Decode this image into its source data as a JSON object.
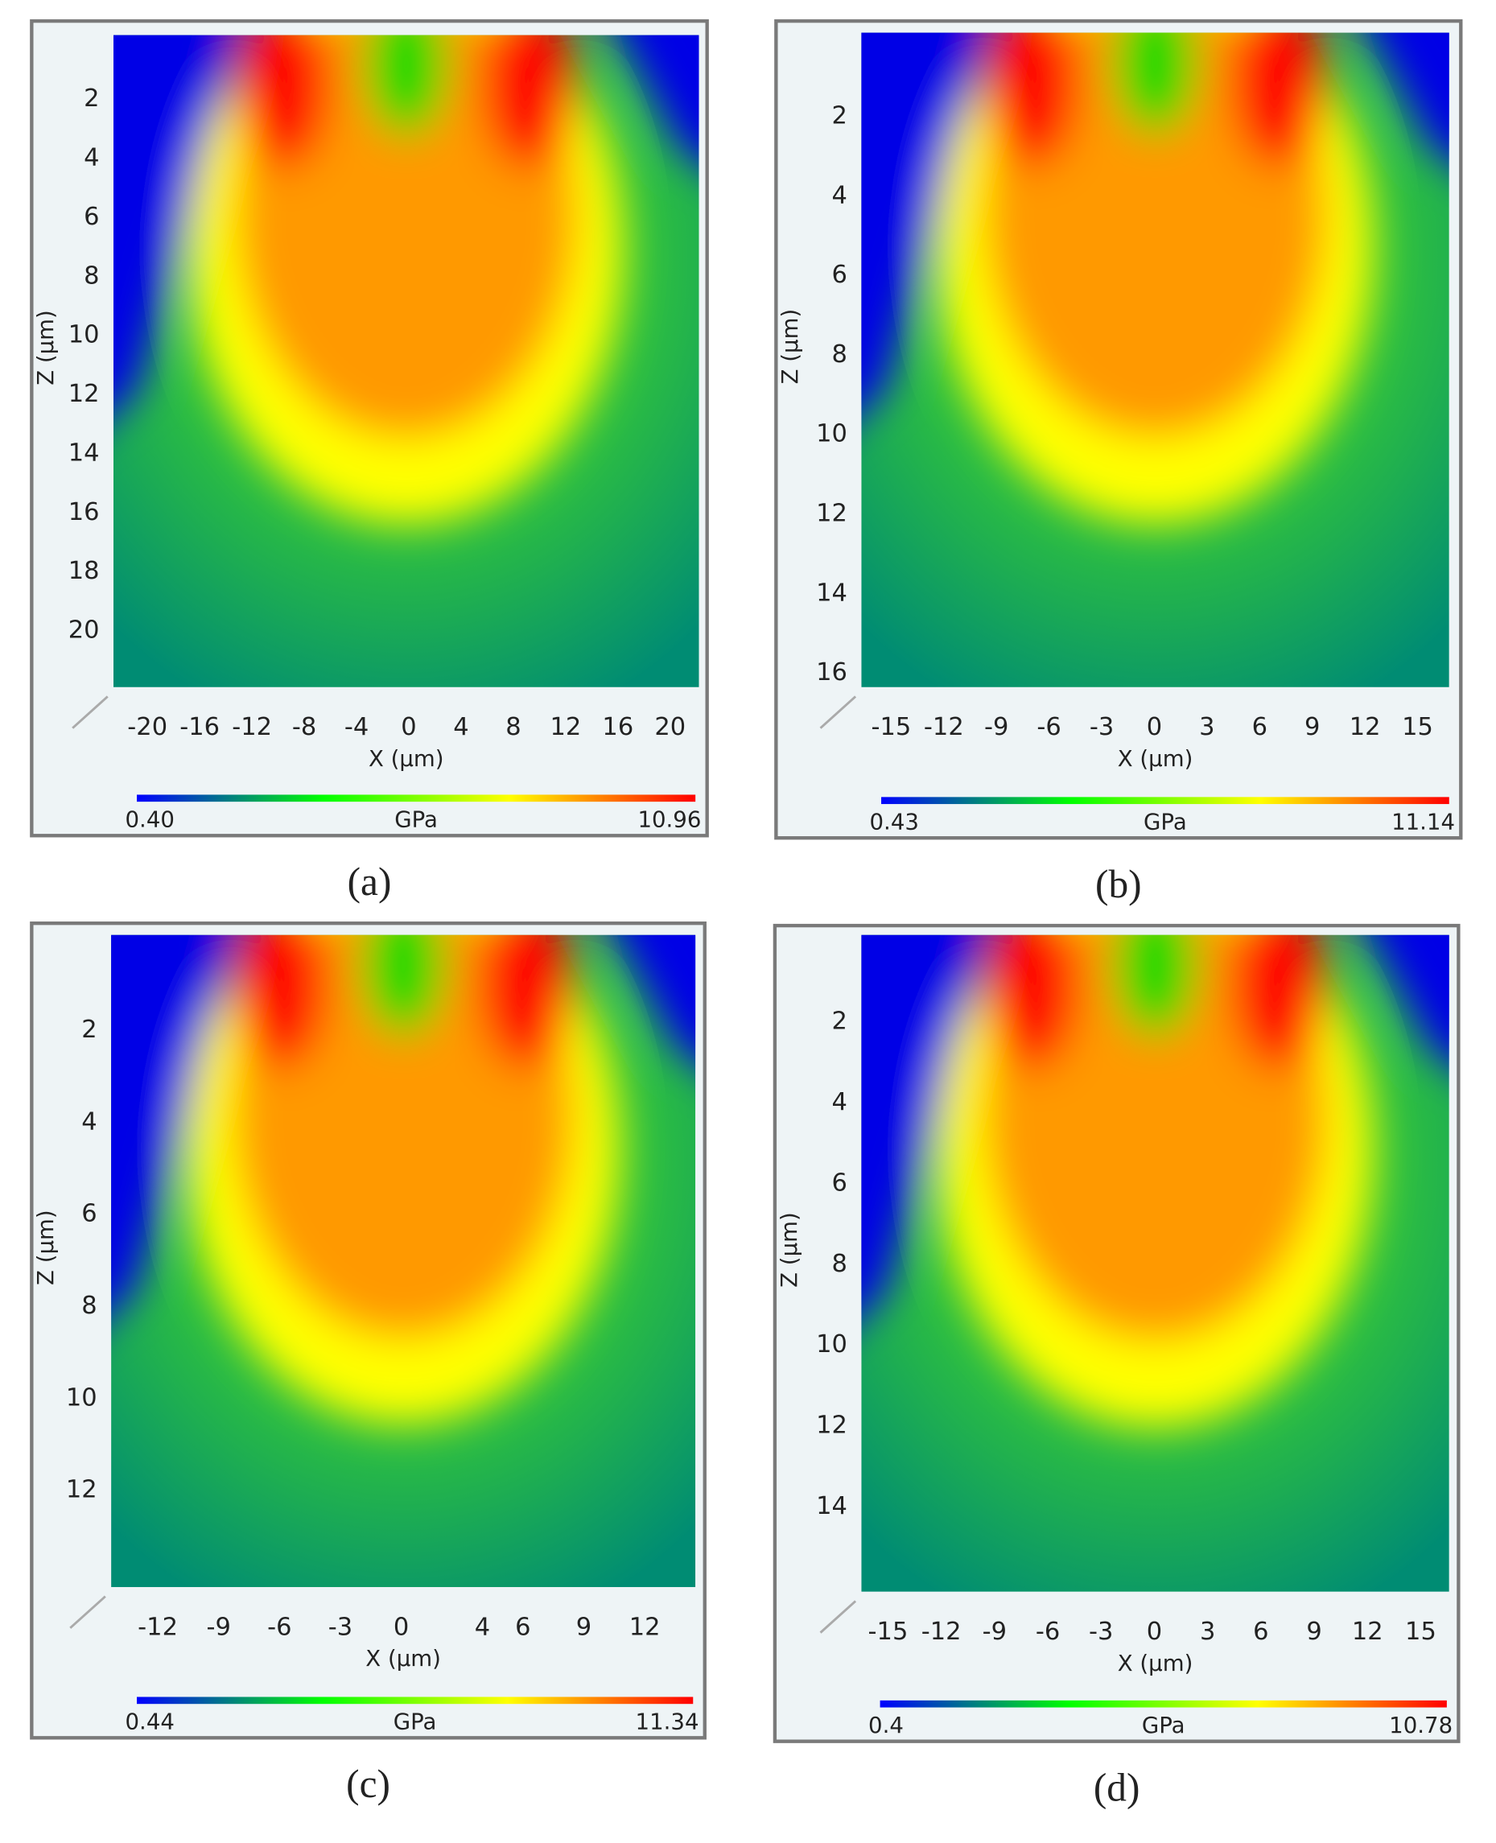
{
  "chart_data": [
    {
      "type": "heatmap",
      "panel_label": "(a)",
      "xlabel": "X (µm)",
      "ylabel": "Z (µm)",
      "xlim": [
        -22.6,
        22.2
      ],
      "ylim": [
        -0.3,
        21.9
      ],
      "y_inverted": true,
      "xticks": [
        -20,
        -16,
        -12,
        -8,
        -4,
        0,
        4,
        8,
        12,
        16,
        20
      ],
      "yticks": [
        2,
        4,
        6,
        8,
        10,
        12,
        14,
        16,
        18,
        20
      ],
      "colormap": [
        "#0000ff",
        "#00ff00",
        "#ffff00",
        "#ff0000"
      ],
      "colorbar": {
        "min": {
          "value": 0.4,
          "label": "0.40"
        },
        "max": 10.96,
        "label": "GPa"
      }
    },
    {
      "type": "heatmap",
      "panel_label": "(b)",
      "xlabel": "X (µm)",
      "ylabel": "Z (µm)",
      "xlim": [
        -16.7,
        16.8
      ],
      "ylim": [
        -0.2,
        16.35
      ],
      "y_inverted": true,
      "xticks": [
        -15,
        -12,
        -9,
        -6,
        -3,
        0,
        3,
        6,
        9,
        12,
        15
      ],
      "yticks": [
        2,
        4,
        6,
        8,
        10,
        12,
        14,
        16
      ],
      "colormap": [
        "#0000ff",
        "#00ff00",
        "#ffff00",
        "#ff0000"
      ],
      "colorbar": {
        "min": 0.43,
        "max": 11.14,
        "label": "GPa"
      }
    },
    {
      "type": "heatmap",
      "panel_label": "(c)",
      "xlabel": "X (µm)",
      "ylabel": "Z (µm)",
      "xlim": [
        -14.3,
        14.5
      ],
      "ylim": [
        -0.16,
        14.1
      ],
      "y_inverted": true,
      "xticks": [
        -12,
        -9,
        -6,
        -3,
        0,
        4,
        6,
        9,
        12
      ],
      "yticks": [
        2,
        4,
        6,
        8,
        10,
        12
      ],
      "colormap": [
        "#0000ff",
        "#00ff00",
        "#ffff00",
        "#ff0000"
      ],
      "colorbar": {
        "min": 0.44,
        "max": 11.34,
        "label": "GPa"
      }
    },
    {
      "type": "heatmap",
      "panel_label": "(d)",
      "xlabel": "X (µm)",
      "ylabel": "Z (µm)",
      "xlim": [
        -16.5,
        16.6
      ],
      "ylim": [
        -0.25,
        16.1
      ],
      "y_inverted": true,
      "xticks": [
        -15,
        -12,
        -9,
        -6,
        -3,
        0,
        3,
        6,
        9,
        12,
        15
      ],
      "yticks": [
        2,
        4,
        6,
        8,
        10,
        12,
        14
      ],
      "colormap": [
        "#0000ff",
        "#00ff00",
        "#ffff00",
        "#ff0000"
      ],
      "colorbar": {
        "min": 0.4,
        "max": 10.78,
        "label": "GPa"
      }
    }
  ]
}
